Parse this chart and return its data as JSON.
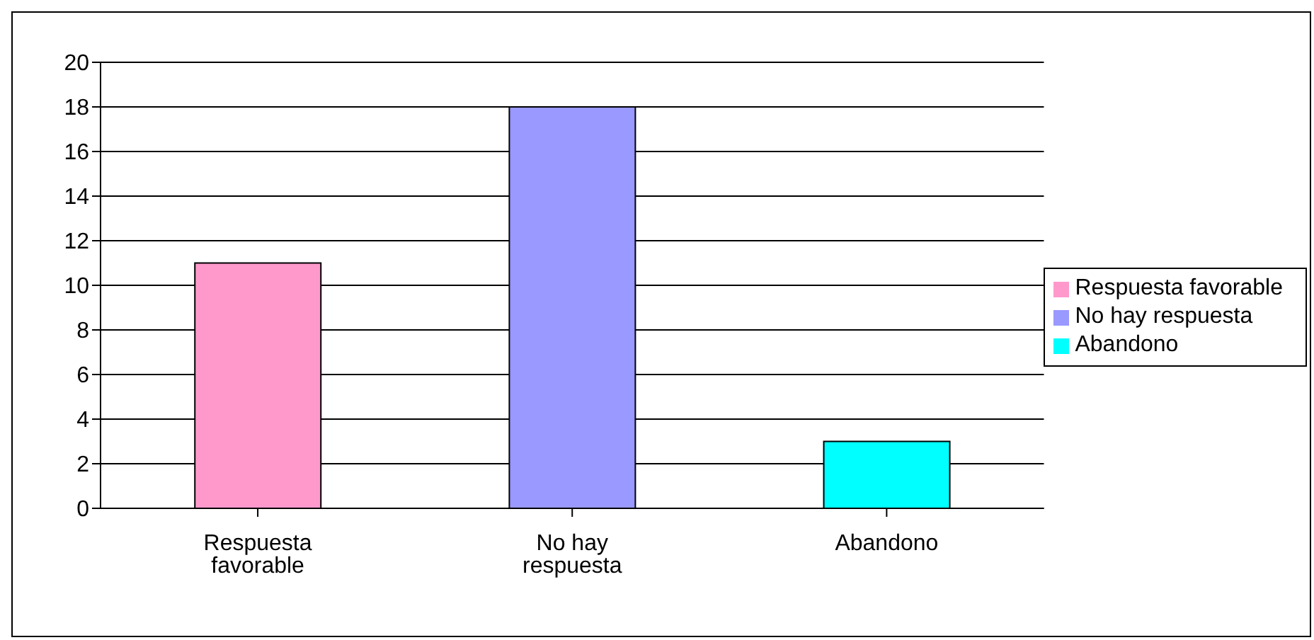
{
  "chart_data": {
    "type": "bar",
    "categories": [
      "Respuesta favorable",
      "No hay respuesta",
      "Abandono"
    ],
    "series": [
      {
        "name": "Respuesta favorable",
        "color": "#ff99cc",
        "values": [
          11,
          null,
          null
        ]
      },
      {
        "name": "No hay respuesta",
        "color": "#9999ff",
        "values": [
          null,
          18,
          null
        ]
      },
      {
        "name": "Abandono",
        "color": "#00ffff",
        "values": [
          null,
          null,
          3
        ]
      }
    ],
    "ylim": [
      0,
      20
    ],
    "yticks": [
      0,
      2,
      4,
      6,
      8,
      10,
      12,
      14,
      16,
      18,
      20
    ],
    "grid": "y",
    "legend": "right"
  }
}
